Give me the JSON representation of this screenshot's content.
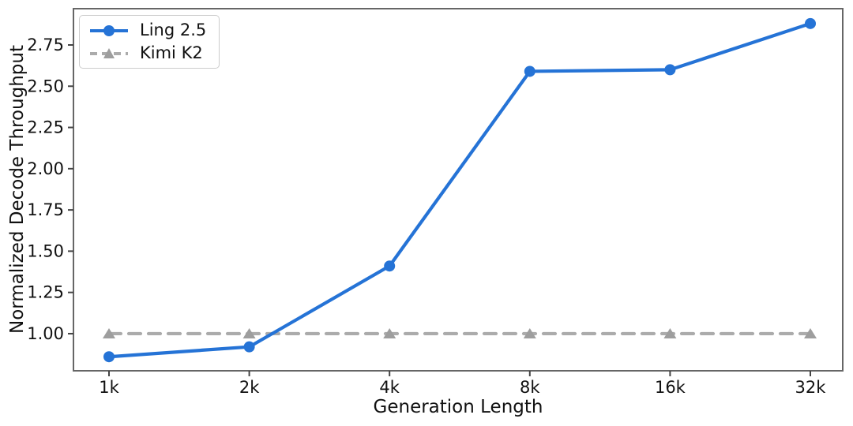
{
  "chart_data": {
    "type": "line",
    "title": "",
    "xlabel": "Generation Length",
    "ylabel": "Normalized Decode Throughput",
    "categories": [
      "1k",
      "2k",
      "4k",
      "8k",
      "16k",
      "32k"
    ],
    "series": [
      {
        "name": "Ling 2.5",
        "values": [
          0.86,
          0.92,
          1.41,
          2.59,
          2.6,
          2.88
        ],
        "color": "#2573D6",
        "marker": "circle",
        "style": "solid"
      },
      {
        "name": "Kimi K2",
        "values": [
          1.0,
          1.0,
          1.0,
          1.0,
          1.0,
          1.0
        ],
        "color": "#ABABAB",
        "marker_color": "#9E9E9E",
        "marker": "triangle",
        "style": "dashed"
      }
    ],
    "yticks": [
      "1.00",
      "1.25",
      "1.50",
      "1.75",
      "2.00",
      "2.25",
      "2.50",
      "2.75"
    ],
    "ylim": [
      0.775,
      2.97
    ],
    "legend_position": "upper-left",
    "grid": false,
    "axis_color": "#666666",
    "tick_color": "#444444",
    "text_color": "#111111"
  }
}
